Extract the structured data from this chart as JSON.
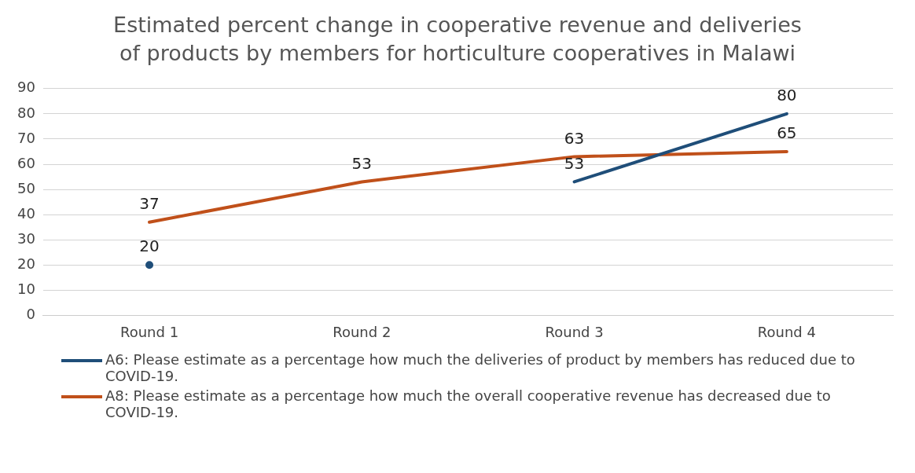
{
  "chart_data": {
    "type": "line",
    "title": "Estimated percent change in cooperative revenue and deliveries of products by members for horticulture cooperatives in Malawi",
    "categories": [
      "Round 1",
      "Round 2",
      "Round 3",
      "Round 4"
    ],
    "series": [
      {
        "name": "A6: Please estimate as a percentage how much the deliveries of product by members has reduced due to COVID-19.",
        "color": "#1f4e79",
        "values": [
          20,
          null,
          53,
          80
        ]
      },
      {
        "name": "A8: Please estimate as a percentage how much the overall cooperative revenue has decreased due to COVID-19.",
        "color": "#c0501a",
        "values": [
          37,
          53,
          63,
          65
        ]
      }
    ],
    "ylim": [
      0,
      90
    ],
    "yticks": [
      0,
      10,
      20,
      30,
      40,
      50,
      60,
      70,
      80,
      90
    ],
    "grid": "y",
    "legend": "bottom",
    "data_labels": true,
    "marker": "none"
  }
}
